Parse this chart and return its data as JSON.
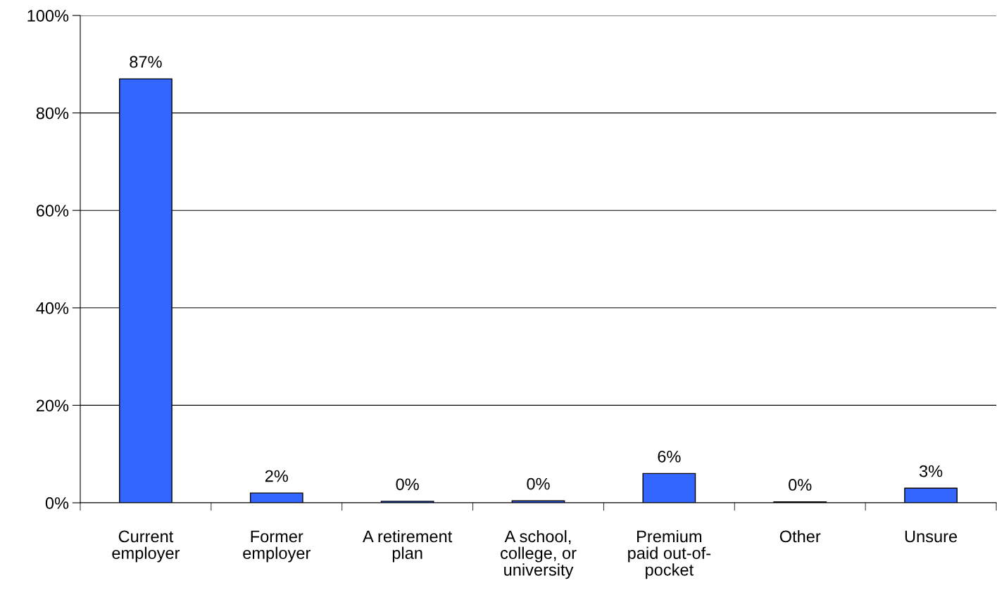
{
  "chart_data": {
    "type": "bar",
    "categories": [
      "Current\nemployer",
      "Former\nemployer",
      "A retirement\nplan",
      "A school,\ncollege, or\nuniversity",
      "Premium\npaid out-of-\npocket",
      "Other",
      "Unsure"
    ],
    "values": [
      87,
      2,
      0.3,
      0.4,
      6,
      0.2,
      3
    ],
    "value_labels": [
      "87%",
      "2%",
      "0%",
      "0%",
      "6%",
      "0%",
      "3%"
    ],
    "color": "#3366ff",
    "ylim": [
      0,
      100
    ],
    "yticks": [
      {
        "value": 0,
        "label": "0%"
      },
      {
        "value": 20,
        "label": "20%"
      },
      {
        "value": 40,
        "label": "40%"
      },
      {
        "value": 60,
        "label": "60%"
      },
      {
        "value": 80,
        "label": "80%"
      },
      {
        "value": 100,
        "label": "100%"
      }
    ],
    "grid": "y"
  }
}
